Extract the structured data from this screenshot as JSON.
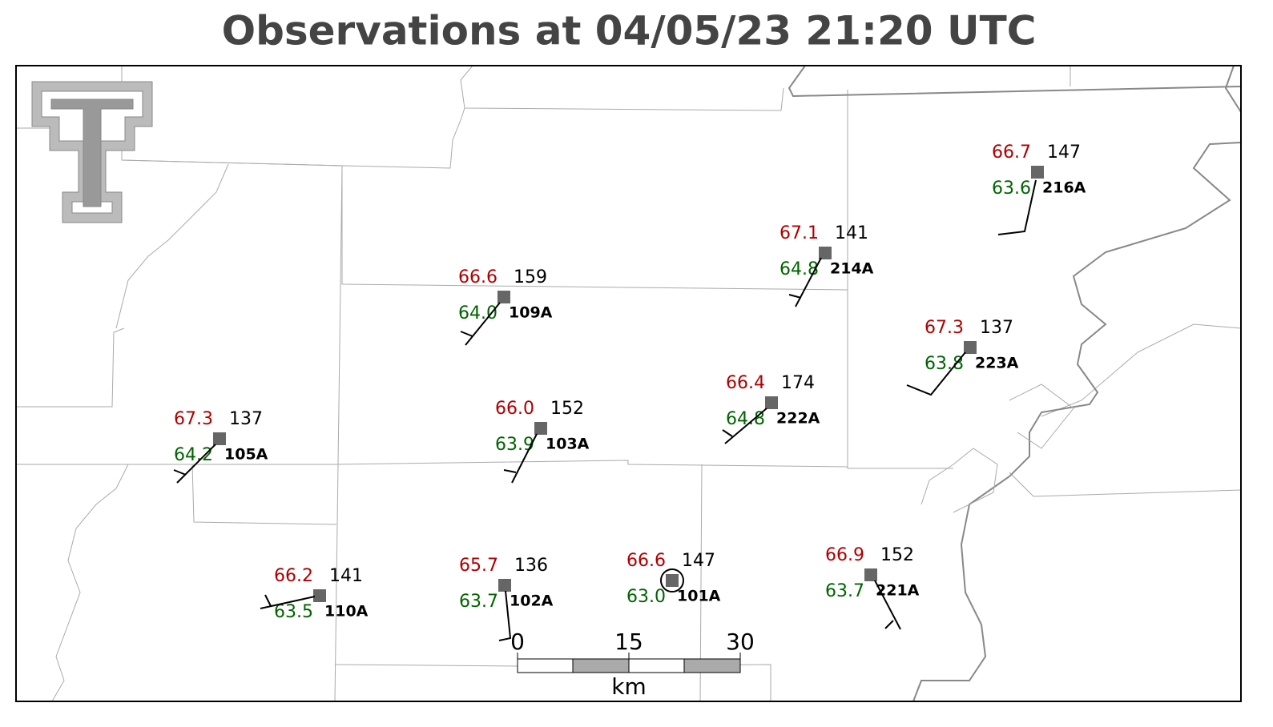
{
  "header": {
    "title": "Observations at 04/05/23 21:20 UTC"
  },
  "stations": [
    {
      "temp": "66.7",
      "value": "147",
      "dewpoint": "63.6",
      "id": "216A"
    },
    {
      "temp": "67.1",
      "value": "141",
      "dewpoint": "64.8",
      "id": "214A"
    },
    {
      "temp": "66.6",
      "value": "159",
      "dewpoint": "64.0",
      "id": "109A"
    },
    {
      "temp": "67.3",
      "value": "137",
      "dewpoint": "63.8",
      "id": "223A"
    },
    {
      "temp": "66.4",
      "value": "174",
      "dewpoint": "64.8",
      "id": "222A"
    },
    {
      "temp": "67.3",
      "value": "137",
      "dewpoint": "64.2",
      "id": "105A"
    },
    {
      "temp": "66.0",
      "value": "152",
      "dewpoint": "63.9",
      "id": "103A"
    },
    {
      "temp": "66.2",
      "value": "141",
      "dewpoint": "63.5",
      "id": "110A"
    },
    {
      "temp": "65.7",
      "value": "136",
      "dewpoint": "63.7",
      "id": "102A"
    },
    {
      "temp": "66.6",
      "value": "147",
      "dewpoint": "63.0",
      "id": "101A"
    },
    {
      "temp": "66.9",
      "value": "152",
      "dewpoint": "63.7",
      "id": "221A"
    }
  ],
  "scale_bar": {
    "ticks": [
      "0",
      "15",
      "30"
    ],
    "unit": "km"
  }
}
